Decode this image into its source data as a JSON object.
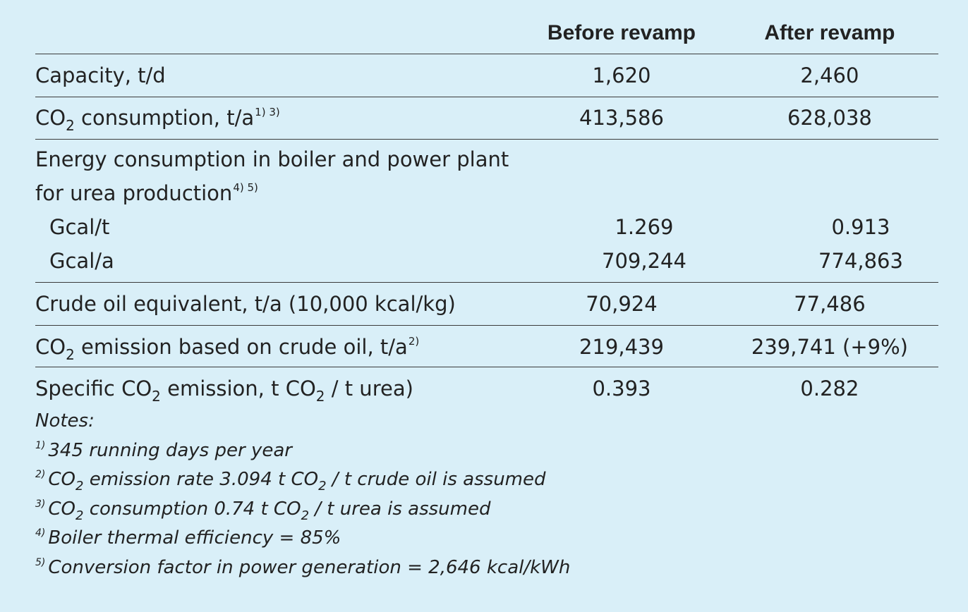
{
  "header": {
    "col_before": "Before revamp",
    "col_after": "After revamp"
  },
  "rows": {
    "capacity": {
      "label": "Capacity, t/d",
      "before": "1,620",
      "after": "2,460"
    },
    "co2_consumption": {
      "label_prefix": "CO",
      "label_sub": "2",
      "label_suffix": " consumption, t/a",
      "footnote": "1) 3)",
      "before": "413,586",
      "after": "628,038"
    },
    "energy": {
      "label_line1": "Energy consumption in boiler and power plant",
      "label_line2": "for urea production",
      "footnote": "4) 5)",
      "gcal_t": {
        "label": "Gcal/t",
        "before": "1.269",
        "after": "0.913"
      },
      "gcal_a": {
        "label": "Gcal/a",
        "before": "709,244",
        "after": "774,863"
      }
    },
    "crude_oil": {
      "label": "Crude oil equivalent, t/a (10,000 kcal/kg)",
      "before": "70,924",
      "after": "77,486"
    },
    "co2_emission": {
      "label_prefix": "CO",
      "label_sub": "2",
      "label_suffix": " emission based on crude oil, t/a",
      "footnote": "2)",
      "before": "219,439",
      "after": "239,741 (+9%)"
    },
    "specific": {
      "label_a": "Specific CO",
      "label_sub1": "2",
      "label_b": " emission, t CO",
      "label_sub2": "2",
      "label_c": " / t urea)",
      "before": "0.393",
      "after": "0.282"
    }
  },
  "notes": {
    "title": "Notes:",
    "n1": {
      "marker": "1)",
      "text": "345 running days per year"
    },
    "n2": {
      "marker": "2)",
      "a": "CO",
      "sub1": "2",
      "b": " emission rate 3.094 t CO",
      "sub2": "2",
      "c": " / t crude oil is assumed"
    },
    "n3": {
      "marker": "3)",
      "a": "CO",
      "sub1": "2",
      "b": " consumption 0.74 t CO",
      "sub2": "2",
      "c": " / t urea is assumed"
    },
    "n4": {
      "marker": "4)",
      "text": "Boiler thermal efficiency = 85%"
    },
    "n5": {
      "marker": "5)",
      "text": "Conversion factor in power generation = 2,646 kcal/kWh"
    }
  }
}
